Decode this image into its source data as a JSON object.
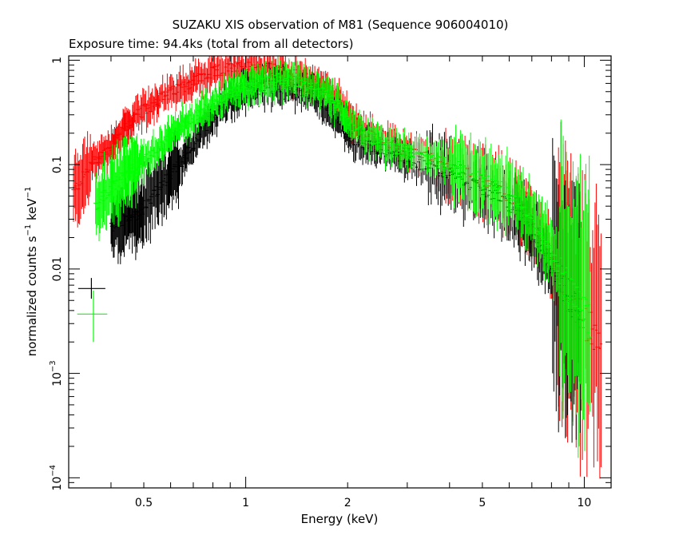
{
  "chart_data": {
    "type": "scatter",
    "title": "SUZAKU XIS observation of M81 (Sequence 906004010)",
    "subtitle": "Exposure time: 94.4ks (total from all detectors)",
    "xlabel": "Energy (keV)",
    "ylabel_main": "normalized counts s",
    "ylabel_sup1": "−1",
    "ylabel_mid": " keV",
    "ylabel_sup2": "−1",
    "xscale": "log",
    "yscale": "log",
    "xlim": [
      0.3,
      12
    ],
    "ylim": [
      8e-05,
      1.1
    ],
    "x_ticks": [
      {
        "value": 0.5,
        "label": "0.5"
      },
      {
        "value": 1,
        "label": "1"
      },
      {
        "value": 2,
        "label": "2"
      },
      {
        "value": 5,
        "label": "5"
      },
      {
        "value": 10,
        "label": "10"
      }
    ],
    "y_ticks": [
      {
        "value": 1,
        "label": "1",
        "sup": ""
      },
      {
        "value": 0.1,
        "label": "0.1",
        "sup": ""
      },
      {
        "value": 0.01,
        "label": "0.01",
        "sup": ""
      },
      {
        "value": 0.001,
        "label": "10",
        "sup": "−3"
      },
      {
        "value": 0.0001,
        "label": "10",
        "sup": "−4"
      }
    ],
    "legend": "none",
    "grid": false,
    "series": [
      {
        "color": "#ff0000",
        "points": [
          [
            0.31,
            0.055
          ],
          [
            0.33,
            0.075
          ],
          [
            0.35,
            0.1
          ],
          [
            0.37,
            0.12
          ],
          [
            0.39,
            0.14
          ],
          [
            0.41,
            0.17
          ],
          [
            0.43,
            0.2
          ],
          [
            0.45,
            0.24
          ],
          [
            0.47,
            0.28
          ],
          [
            0.5,
            0.33
          ],
          [
            0.53,
            0.38
          ],
          [
            0.56,
            0.43
          ],
          [
            0.6,
            0.48
          ],
          [
            0.64,
            0.55
          ],
          [
            0.68,
            0.6
          ],
          [
            0.72,
            0.66
          ],
          [
            0.77,
            0.72
          ],
          [
            0.82,
            0.78
          ],
          [
            0.88,
            0.82
          ],
          [
            0.94,
            0.85
          ],
          [
            1.0,
            0.86
          ],
          [
            1.07,
            0.86
          ],
          [
            1.14,
            0.84
          ],
          [
            1.22,
            0.8
          ],
          [
            1.3,
            0.76
          ],
          [
            1.4,
            0.71
          ],
          [
            1.5,
            0.66
          ],
          [
            1.6,
            0.6
          ],
          [
            1.7,
            0.54
          ],
          [
            1.8,
            0.46
          ],
          [
            1.9,
            0.38
          ],
          [
            2.0,
            0.3
          ],
          [
            2.1,
            0.24
          ],
          [
            2.2,
            0.21
          ],
          [
            2.35,
            0.19
          ],
          [
            2.5,
            0.17
          ],
          [
            2.7,
            0.15
          ],
          [
            2.9,
            0.14
          ],
          [
            3.1,
            0.13
          ],
          [
            3.4,
            0.12
          ],
          [
            3.7,
            0.105
          ],
          [
            4.0,
            0.095
          ],
          [
            4.4,
            0.085
          ],
          [
            4.8,
            0.075
          ],
          [
            5.2,
            0.065
          ],
          [
            5.7,
            0.055
          ],
          [
            6.2,
            0.045
          ],
          [
            6.6,
            0.036
          ],
          [
            7.0,
            0.026
          ],
          [
            7.5,
            0.018
          ],
          [
            8.0,
            0.012
          ],
          [
            8.6,
            0.008
          ],
          [
            9.2,
            0.005
          ],
          [
            9.8,
            0.0035
          ],
          [
            10.5,
            0.0025
          ],
          [
            11.3,
            0.0015
          ]
        ]
      },
      {
        "color": "#000000",
        "points": [
          [
            0.4,
            0.025
          ],
          [
            0.42,
            0.028
          ],
          [
            0.44,
            0.03
          ],
          [
            0.46,
            0.032
          ],
          [
            0.48,
            0.034
          ],
          [
            0.5,
            0.04
          ],
          [
            0.53,
            0.05
          ],
          [
            0.56,
            0.06
          ],
          [
            0.59,
            0.075
          ],
          [
            0.62,
            0.09
          ],
          [
            0.65,
            0.11
          ],
          [
            0.68,
            0.14
          ],
          [
            0.72,
            0.18
          ],
          [
            0.76,
            0.23
          ],
          [
            0.8,
            0.29
          ],
          [
            0.85,
            0.35
          ],
          [
            0.9,
            0.41
          ],
          [
            0.95,
            0.46
          ],
          [
            1.0,
            0.5
          ],
          [
            1.06,
            0.53
          ],
          [
            1.12,
            0.55
          ],
          [
            1.2,
            0.56
          ],
          [
            1.28,
            0.56
          ],
          [
            1.36,
            0.55
          ],
          [
            1.45,
            0.52
          ],
          [
            1.55,
            0.48
          ],
          [
            1.65,
            0.42
          ],
          [
            1.75,
            0.35
          ],
          [
            1.85,
            0.28
          ],
          [
            1.95,
            0.22
          ],
          [
            2.05,
            0.18
          ],
          [
            2.2,
            0.16
          ],
          [
            2.35,
            0.15
          ],
          [
            2.5,
            0.14
          ],
          [
            2.7,
            0.13
          ],
          [
            2.9,
            0.12
          ],
          [
            3.1,
            0.11
          ],
          [
            3.4,
            0.1
          ],
          [
            3.7,
            0.09
          ],
          [
            4.0,
            0.08
          ],
          [
            4.4,
            0.07
          ],
          [
            4.8,
            0.062
          ],
          [
            5.2,
            0.055
          ],
          [
            5.7,
            0.046
          ],
          [
            6.2,
            0.037
          ],
          [
            6.6,
            0.03
          ],
          [
            7.0,
            0.022
          ],
          [
            7.5,
            0.015
          ],
          [
            8.0,
            0.01
          ],
          [
            8.6,
            0.007
          ],
          [
            9.2,
            0.005
          ],
          [
            9.8,
            0.0038
          ]
        ]
      },
      {
        "color": "#00ff00",
        "points": [
          [
            0.36,
            0.04
          ],
          [
            0.38,
            0.05
          ],
          [
            0.4,
            0.06
          ],
          [
            0.42,
            0.07
          ],
          [
            0.44,
            0.08
          ],
          [
            0.46,
            0.09
          ],
          [
            0.48,
            0.1
          ],
          [
            0.5,
            0.11
          ],
          [
            0.53,
            0.13
          ],
          [
            0.56,
            0.15
          ],
          [
            0.59,
            0.17
          ],
          [
            0.62,
            0.2
          ],
          [
            0.65,
            0.23
          ],
          [
            0.68,
            0.26
          ],
          [
            0.72,
            0.3
          ],
          [
            0.76,
            0.34
          ],
          [
            0.8,
            0.38
          ],
          [
            0.85,
            0.43
          ],
          [
            0.9,
            0.48
          ],
          [
            0.95,
            0.52
          ],
          [
            1.0,
            0.56
          ],
          [
            1.06,
            0.6
          ],
          [
            1.12,
            0.63
          ],
          [
            1.2,
            0.65
          ],
          [
            1.28,
            0.65
          ],
          [
            1.36,
            0.64
          ],
          [
            1.45,
            0.62
          ],
          [
            1.55,
            0.58
          ],
          [
            1.65,
            0.52
          ],
          [
            1.75,
            0.45
          ],
          [
            1.85,
            0.38
          ],
          [
            1.95,
            0.3
          ],
          [
            2.05,
            0.24
          ],
          [
            2.2,
            0.2
          ],
          [
            2.35,
            0.18
          ],
          [
            2.5,
            0.16
          ],
          [
            2.7,
            0.15
          ],
          [
            2.9,
            0.14
          ],
          [
            3.1,
            0.13
          ],
          [
            3.4,
            0.12
          ],
          [
            3.7,
            0.11
          ],
          [
            4.0,
            0.1
          ],
          [
            4.4,
            0.09
          ],
          [
            4.8,
            0.08
          ],
          [
            5.2,
            0.07
          ],
          [
            5.7,
            0.06
          ],
          [
            6.2,
            0.05
          ],
          [
            6.6,
            0.04
          ],
          [
            7.0,
            0.03
          ],
          [
            7.5,
            0.021
          ],
          [
            8.0,
            0.014
          ],
          [
            8.6,
            0.009
          ],
          [
            9.2,
            0.006
          ],
          [
            9.8,
            0.0042
          ],
          [
            10.5,
            0.003
          ]
        ]
      }
    ],
    "markers": [
      {
        "color": "#000000",
        "x": 0.35,
        "y": 0.0065,
        "xerr": [
          0.32,
          0.385
        ],
        "yerr": [
          0.0052,
          0.0082
        ]
      },
      {
        "color": "#00ff00",
        "x": 0.355,
        "y": 0.0037,
        "xerr": [
          0.318,
          0.39
        ],
        "yerr": [
          0.002,
          0.0062
        ]
      }
    ]
  }
}
